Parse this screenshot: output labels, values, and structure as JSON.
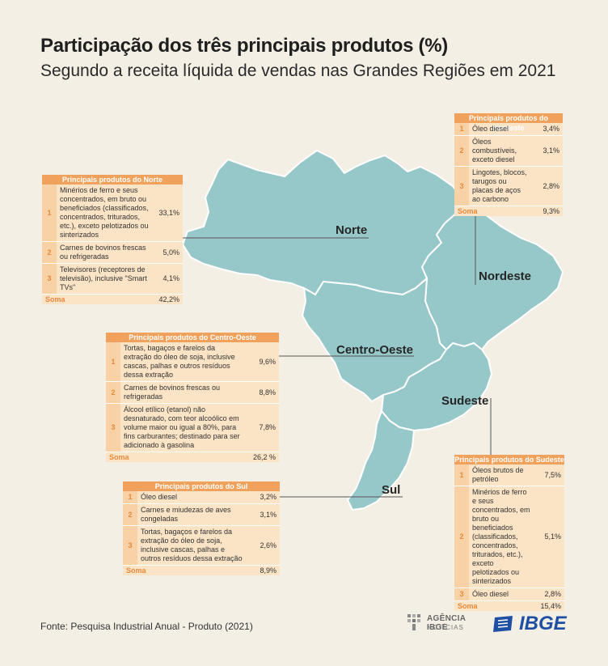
{
  "title": "Participação dos três principais produtos (%)",
  "subtitle": "Segundo a receita líquida de vendas nas Grandes Regiões em 2021",
  "colors": {
    "map_fill": "#96c8c9",
    "map_stroke": "#ffffff",
    "panel_header": "#f0a25c",
    "panel_bg": "#fbe3c6",
    "accent": "#e58a3c",
    "background": "#f4efe4"
  },
  "regions": {
    "norte": "Norte",
    "nordeste": "Nordeste",
    "centro_oeste": "Centro-Oeste",
    "sudeste": "Sudeste",
    "sul": "Sul"
  },
  "panels": {
    "norte": {
      "header": "Principais produtos do Norte",
      "rows": [
        {
          "num": "1",
          "desc": "Minérios de ferro e seus concentrados, em bruto ou beneficiados (classificados, concentrados, triturados, etc.), exceto pelotizados ou sinterizados",
          "value": "33,1%"
        },
        {
          "num": "2",
          "desc": "Carnes de bovinos frescas ou refrigeradas",
          "value": "5,0%"
        },
        {
          "num": "3",
          "desc": "Televisores (receptores de televisão), inclusive \"Smart TVs\"",
          "value": "4,1%"
        }
      ],
      "sum_label": "Soma",
      "sum_value": "42,2%"
    },
    "nordeste": {
      "header": "Principais produtos do Nordeste",
      "rows": [
        {
          "num": "1",
          "desc": "Óleo diesel",
          "value": "3,4%"
        },
        {
          "num": "2",
          "desc": "Óleos combustíveis, exceto diesel",
          "value": "3,1%"
        },
        {
          "num": "3",
          "desc": "Lingotes, blocos, tarugos ou placas de aços ao carbono",
          "value": "2,8%"
        }
      ],
      "sum_label": "Soma",
      "sum_value": "9,3%"
    },
    "centro_oeste": {
      "header": "Principais produtos do Centro-Oeste",
      "rows": [
        {
          "num": "1",
          "desc": "Tortas, bagaços e farelos da extração do óleo de soja, inclusive cascas, palhas e outros resíduos dessa extração",
          "value": "9,6%"
        },
        {
          "num": "2",
          "desc": "Carnes de bovinos frescas ou refrigeradas",
          "value": "8,8%"
        },
        {
          "num": "3",
          "desc": "Álcool etílico (etanol) não desnaturado, com teor alcoólico em volume maior ou igual a 80%, para fins carburantes; destinado para ser adicionado à gasolina",
          "value": "7,8%"
        }
      ],
      "sum_label": "Soma",
      "sum_value": "26,2 %"
    },
    "sudeste": {
      "header": "Principais produtos do Sudeste",
      "rows": [
        {
          "num": "1",
          "desc": "Óleos brutos de petróleo",
          "value": "7,5%"
        },
        {
          "num": "2",
          "desc": "Minérios de ferro e seus concentrados, em bruto ou beneficiados (classificados, concentrados, triturados, etc.), exceto pelotizados ou sinterizados",
          "value": "5,1%"
        },
        {
          "num": "3",
          "desc": "Óleo diesel",
          "value": "2,8%"
        }
      ],
      "sum_label": "Soma",
      "sum_value": "15,4%"
    },
    "sul": {
      "header": "Principais produtos do Sul",
      "rows": [
        {
          "num": "1",
          "desc": "Óleo diesel",
          "value": "3,2%"
        },
        {
          "num": "2",
          "desc": "Carnes e miudezas de aves congeladas",
          "value": "3,1%"
        },
        {
          "num": "3",
          "desc": "Tortas, bagaços e farelos da extração do óleo de soja, inclusive cascas, palhas e outros resíduos dessa extração",
          "value": "2,6%"
        }
      ],
      "sum_label": "Soma",
      "sum_value": "8,9%"
    }
  },
  "source": "Fonte: Pesquisa Industrial Anual - Produto (2021)",
  "logos": {
    "agencia_line1": "AGÊNCIA IBGE",
    "agencia_line2": "NOTÍCIAS",
    "ibge": "IBGE"
  }
}
